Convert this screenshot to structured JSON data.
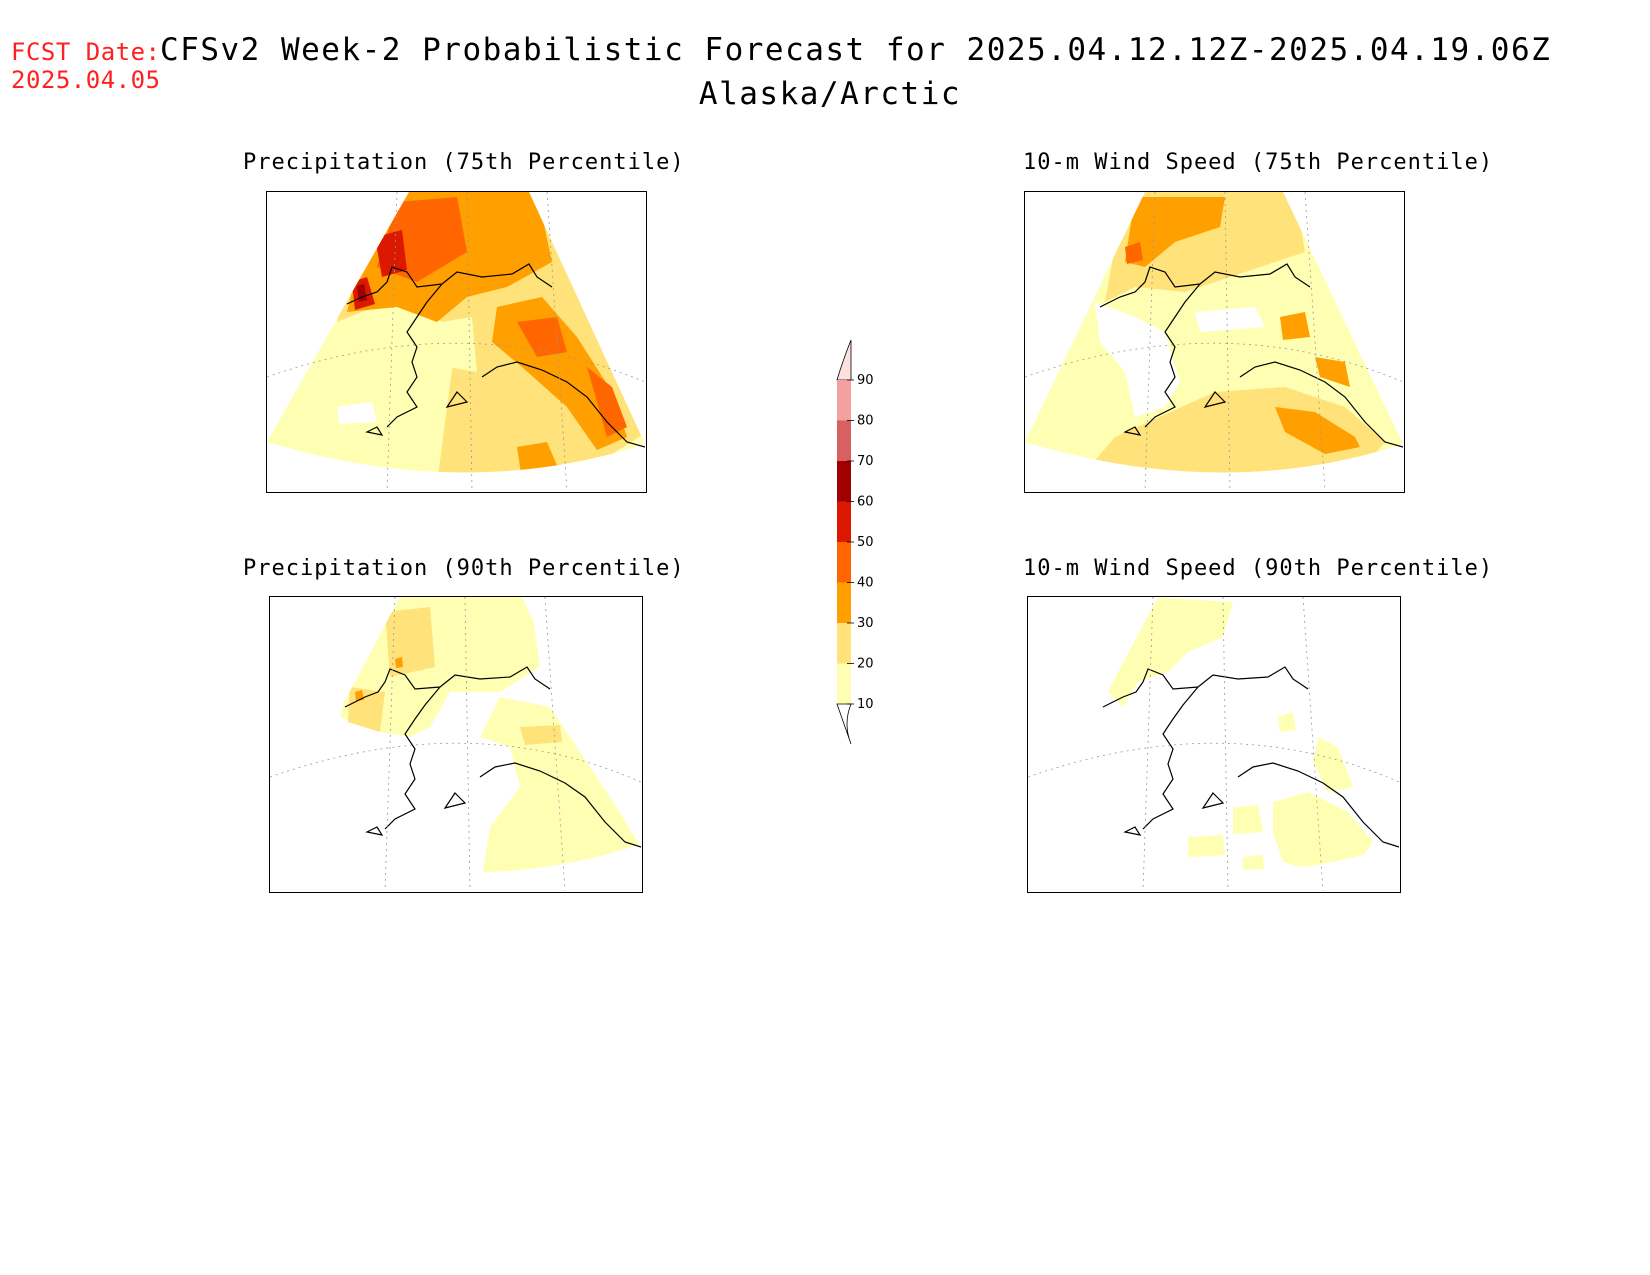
{
  "forecast_date": {
    "label": "FCST Date:",
    "value": "2025.04.05"
  },
  "header": {
    "title": "CFSv2 Week-2 Probabilistic Forecast for 2025.04.12.12Z-2025.04.19.06Z",
    "region": "Alaska/Arctic"
  },
  "panels": [
    {
      "title": "Precipitation (75th Percentile)"
    },
    {
      "title": "10-m Wind Speed (75th Percentile)"
    },
    {
      "title": "Precipitation (90th Percentile)"
    },
    {
      "title": "10-m Wind Speed (90th Percentile)"
    }
  ],
  "colorbar": {
    "levels": [
      "90",
      "80",
      "70",
      "60",
      "50",
      "40",
      "30",
      "20",
      "10"
    ],
    "colors": [
      "#fde0e0",
      "#f2a0a0",
      "#d86060",
      "#a00000",
      "#dd1800",
      "#ff6600",
      "#ff9f00",
      "#ffe27a",
      "#ffffb4"
    ]
  }
}
